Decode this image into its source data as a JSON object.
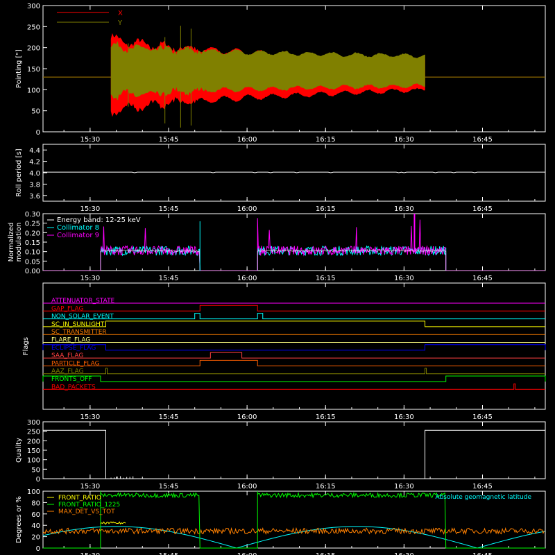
{
  "time_axis": {
    "range": [
      "15:21",
      "16:57"
    ],
    "major_ticks": [
      "15:30",
      "15:45",
      "16:00",
      "16:15",
      "16:30",
      "16:45"
    ]
  },
  "chart_data": [
    {
      "id": "pointing",
      "type": "line",
      "ylabel": "Pointing [\"]",
      "ylim": [
        0,
        300
      ],
      "yticks": [
        0,
        50,
        100,
        150,
        200,
        250,
        300
      ],
      "legend": "top-left",
      "series": [
        {
          "name": "X",
          "color": "#ff0000",
          "baseline": 130,
          "active": [
            "15:34",
            "16:34"
          ],
          "center": 135,
          "amp_start": 90,
          "amp_end": 35
        },
        {
          "name": "Y",
          "color": "#808000",
          "baseline": 130,
          "active": [
            "15:34",
            "16:34"
          ],
          "center": 145,
          "amp_start": 60,
          "amp_end": 35
        }
      ]
    },
    {
      "id": "roll",
      "type": "line",
      "ylabel": "Roll period [s]",
      "ylim": [
        3.5,
        4.5
      ],
      "yticks": [
        "3.6",
        "3.8",
        "4.0",
        "4.2",
        "4.4"
      ],
      "series": [
        {
          "color": "#ffffff",
          "value": 4.01
        }
      ]
    },
    {
      "id": "modulation",
      "type": "line",
      "ylabel": [
        "Normalized",
        "modulation"
      ],
      "ylim": [
        0,
        0.3
      ],
      "yticks": [
        "0.00",
        "0.05",
        "0.10",
        "0.15",
        "0.20",
        "0.25",
        "0.30"
      ],
      "legend": "top-left",
      "legend_items": [
        {
          "label": "Energy band: 12-25 keV",
          "color": "#ffffff"
        },
        {
          "label": "Collimator 8",
          "color": "#00ffff"
        },
        {
          "label": "Collimator 9",
          "color": "#ff00ff"
        }
      ],
      "segments": [
        [
          "15:32",
          "15:51"
        ],
        [
          "16:02",
          "16:38"
        ]
      ],
      "level": 0.105
    },
    {
      "id": "flags",
      "type": "line",
      "ylabel": "Flags",
      "flags": [
        {
          "label": "ATTENUATOR_STATE",
          "color": "#ff00ff",
          "highs": []
        },
        {
          "label": "GAP_FLAG",
          "color": "#ff0000",
          "highs": [
            [
              "15:51",
              "16:02"
            ]
          ]
        },
        {
          "label": "NON_SOLAR_EVENT",
          "color": "#00ffff",
          "highs": [
            [
              "15:50",
              "15:51"
            ],
            [
              "16:02",
              "16:03"
            ]
          ]
        },
        {
          "label": "SC_IN_SUNLIGHT",
          "color": "#ffff00",
          "highs": [
            [
              "15:33",
              "16:34"
            ]
          ]
        },
        {
          "label": "SC_TRANSMITTER",
          "color": "#ff8000",
          "highs": []
        },
        {
          "label": "FLARE_FLAG",
          "color": "#ffff80",
          "highs": []
        },
        {
          "label": "ECLIPSE_FLAG",
          "color": "#0000ff",
          "highs": [
            [
              "15:21",
              "15:33"
            ],
            [
              "16:34",
              "16:57"
            ]
          ]
        },
        {
          "label": "SAA_FLAG",
          "color": "#ff4040",
          "highs": [
            [
              "15:53",
              "15:59"
            ]
          ]
        },
        {
          "label": "PARTICLE_FLAG",
          "color": "#ff6000",
          "highs": [
            [
              "15:51",
              "16:02"
            ]
          ]
        },
        {
          "label": "AAZ_FLAG",
          "color": "#808000",
          "highs": [
            [
              "15:33",
              "15:33"
            ],
            [
              "16:34",
              "16:34"
            ]
          ]
        },
        {
          "label": "FRONTS_OFF",
          "color": "#00ff00",
          "highs": [
            [
              "15:21",
              "15:32"
            ],
            [
              "16:38",
              "16:57"
            ]
          ]
        },
        {
          "label": "BAD_PACKETS",
          "color": "#ff0000",
          "highs": [
            [
              "16:51",
              "16:51"
            ]
          ]
        }
      ]
    },
    {
      "id": "quality",
      "type": "line",
      "ylabel": "Quality",
      "ylim": [
        0,
        300
      ],
      "yticks": [
        0,
        50,
        100,
        150,
        200,
        250,
        300
      ],
      "series": [
        {
          "color": "#ffffff",
          "x": [
            "15:21",
            "15:33",
            "15:33",
            "16:34",
            "16:34",
            "16:57"
          ],
          "y": [
            255,
            255,
            0,
            0,
            255,
            255
          ]
        }
      ]
    },
    {
      "id": "ratios",
      "type": "line",
      "ylabel": "Degrees or %",
      "ylim": [
        0,
        100
      ],
      "yticks": [
        0,
        20,
        40,
        60,
        80,
        100
      ],
      "legend": "top-left",
      "legend_items": [
        {
          "label": "FRONT_RATIO",
          "color": "#ffff00"
        },
        {
          "label": "FRONT_RATIO_1225",
          "color": "#00ff00"
        },
        {
          "label": "MAX_DET_VS_TOT",
          "color": "#ff8000"
        }
      ],
      "annotation": {
        "label": "Absolute geomagnetic latitude",
        "color": "#00ffff"
      },
      "segments": [
        [
          "15:32",
          "15:51"
        ],
        [
          "16:02",
          "16:38"
        ]
      ],
      "front_ratio_1225_level": 93,
      "max_det_vs_tot_level": 30
    }
  ]
}
